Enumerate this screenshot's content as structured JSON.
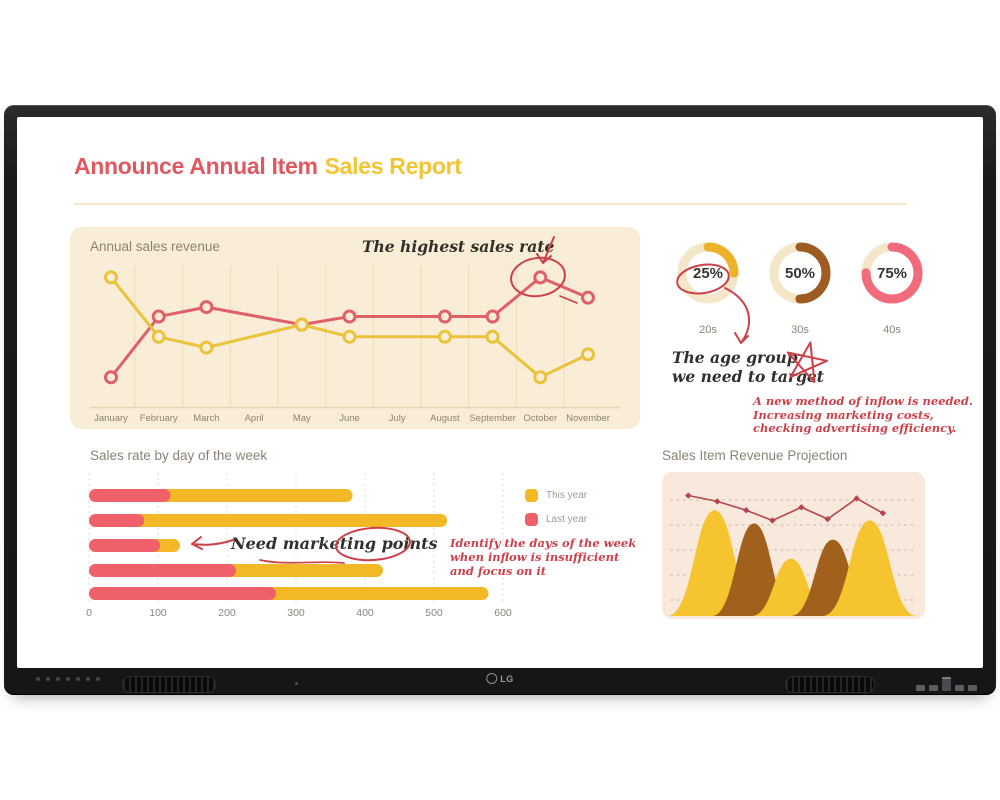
{
  "device": {
    "logo": "LG"
  },
  "screen": {
    "title": {
      "part1": "Announce Annual Item",
      "part2": "Sales Report"
    }
  },
  "annotations": {
    "highest": "The highest sales rate",
    "age_group_line1": "The age group",
    "age_group_line2": "we need to target",
    "inflow_note": [
      "A new method of inflow is needed.",
      "Increasing marketing costs,",
      "checking advertising efficiency."
    ],
    "marketing": "Need marketing points",
    "identify_note": [
      "Identify the days of the week",
      "when inflow is insufficient",
      "and focus on it"
    ]
  },
  "colors": {
    "title_red": "#e25861",
    "title_yellow": "#f3c433",
    "line_red": "#e0606a",
    "line_yellow": "#eac33c",
    "bar_yellow": "#f3b826",
    "bar_red": "#f0606b",
    "donut_yellow": "#ecb32a",
    "donut_brown": "#9e5b22",
    "donut_pink": "#f16b7c",
    "panel_cream": "#f9edd7",
    "panel_pink": "#f8e9dc",
    "ink_red": "#cc4049",
    "ink_black": "#33302b"
  },
  "chart_data": [
    {
      "type": "line",
      "title": "Annual sales revenue",
      "categories": [
        "January",
        "February",
        "March",
        "April",
        "May",
        "June",
        "July",
        "August",
        "September",
        "October",
        "November"
      ],
      "series": [
        {
          "name": "red-line",
          "color": "#e0606a",
          "values": [
            22,
            67,
            74,
            null,
            61,
            67,
            null,
            67,
            67,
            96,
            81
          ]
        },
        {
          "name": "yellow-line",
          "color": "#eac33c",
          "values": [
            96,
            52,
            44,
            null,
            61,
            52,
            null,
            52,
            52,
            22,
            39
          ]
        }
      ],
      "ylim": [
        0,
        110
      ],
      "grid": "vertical",
      "note": "markers on every month except April and July"
    },
    {
      "type": "pie",
      "subtype": "donut-gauges",
      "track_color": "#f4e6c9",
      "items": [
        {
          "value": 25,
          "label": "20s",
          "color": "#ecb32a"
        },
        {
          "value": 50,
          "label": "30s",
          "color": "#9e5b22"
        },
        {
          "value": 75,
          "label": "40s",
          "color": "#f16b7c"
        }
      ]
    },
    {
      "type": "bar",
      "orientation": "horizontal-stacked",
      "title": "Sales rate by day of the week",
      "x_ticks": [
        0,
        100,
        200,
        300,
        400,
        500,
        600
      ],
      "xlim": [
        0,
        600
      ],
      "legend": [
        {
          "label": "This year",
          "color": "#f3b826"
        },
        {
          "label": "Last year",
          "color": "#f0606b"
        }
      ],
      "rows": [
        {
          "last_year": 118,
          "this_year": 264,
          "total": 382
        },
        {
          "last_year": 80,
          "this_year": 439,
          "total": 519
        },
        {
          "last_year": 103,
          "this_year": 29,
          "total": 132
        },
        {
          "last_year": 213,
          "this_year": 213,
          "total": 426
        },
        {
          "last_year": 271,
          "this_year": 308,
          "total": 579
        }
      ]
    },
    {
      "type": "area",
      "title": "Sales Item Revenue Projection",
      "grid": "horizontal-dashed",
      "mountains": [
        {
          "color": "#f5c42e",
          "center_pct": 20,
          "top_pct": 26,
          "halfwidth_pct": 18
        },
        {
          "color": "#a2601d",
          "center_pct": 35,
          "top_pct": 35,
          "halfwidth_pct": 16
        },
        {
          "color": "#f5c42e",
          "center_pct": 49,
          "top_pct": 59,
          "halfwidth_pct": 15
        },
        {
          "color": "#a2601d",
          "center_pct": 65,
          "top_pct": 46,
          "halfwidth_pct": 16
        },
        {
          "color": "#f5c42e",
          "center_pct": 79,
          "top_pct": 33,
          "halfwidth_pct": 18
        }
      ],
      "line": {
        "color": "#b5444e",
        "points_pct": [
          [
            10,
            16
          ],
          [
            21,
            20
          ],
          [
            32,
            26
          ],
          [
            42,
            33
          ],
          [
            53,
            24
          ],
          [
            63,
            32
          ],
          [
            74,
            18
          ],
          [
            84,
            28
          ]
        ]
      }
    }
  ]
}
